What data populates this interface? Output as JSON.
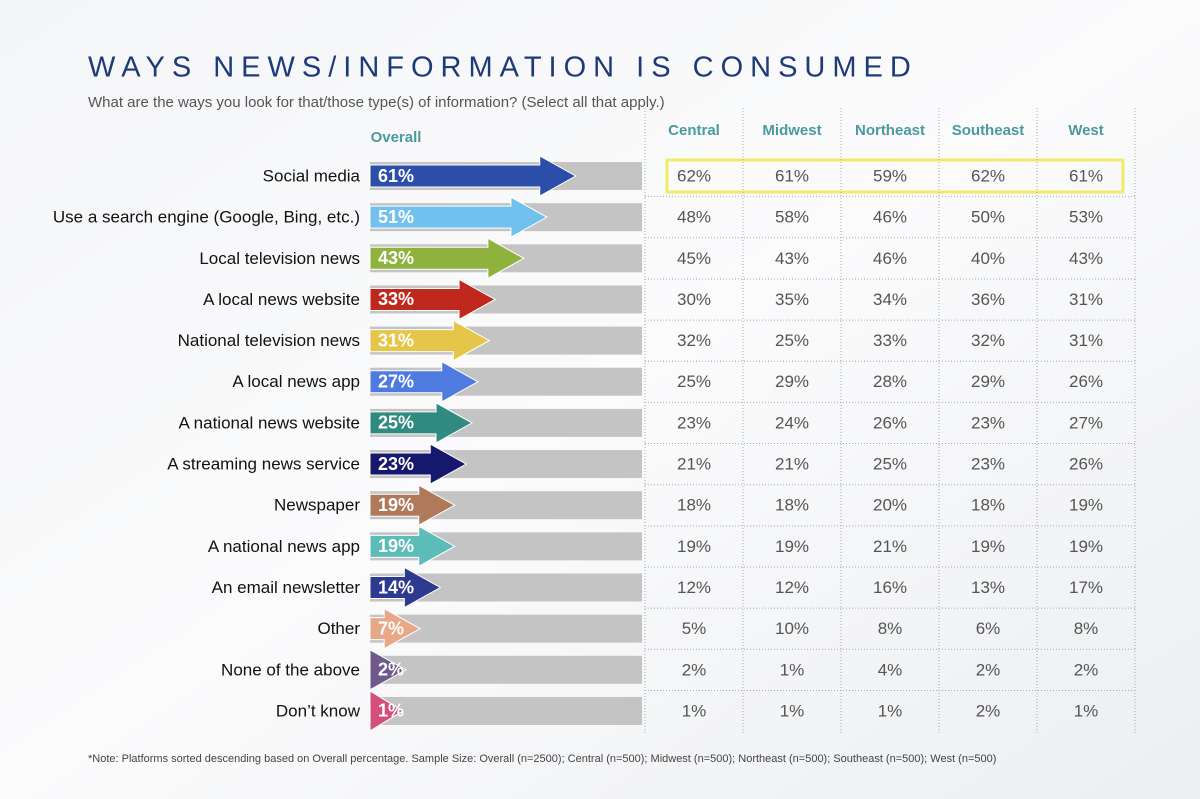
{
  "chart_data": {
    "type": "bar",
    "orientation": "horizontal",
    "title": "WAYS NEWS/INFORMATION IS CONSUMED",
    "subtitle": "What are the ways you look for that/those type(s) of information? (Select all that apply.)",
    "series_label": "Overall",
    "categories": [
      "Social media",
      "Use a search engine (Google, Bing, etc.)",
      "Local television news",
      "A local news website",
      "National television news",
      "A local news app",
      "A national news website",
      "A streaming news service",
      "Newspaper",
      "A national news app",
      "An email newsletter",
      "Other",
      "None of the above",
      "Don’t know"
    ],
    "values": [
      61,
      51,
      43,
      33,
      31,
      27,
      25,
      23,
      19,
      19,
      14,
      7,
      2,
      1
    ],
    "value_labels": [
      "61%",
      "51%",
      "43%",
      "33%",
      "31%",
      "27%",
      "25%",
      "23%",
      "19%",
      "19%",
      "14%",
      "7%",
      "2%",
      "1%"
    ],
    "colors": [
      "#2b4fa8",
      "#72c0ee",
      "#8fb13e",
      "#c0281e",
      "#e6c64a",
      "#4f7be0",
      "#2f8a80",
      "#16186e",
      "#b07a5a",
      "#5bbcb8",
      "#2e3a8f",
      "#e8a888",
      "#6e5a8a",
      "#d4507a"
    ],
    "xlim": [
      0,
      84
    ]
  },
  "table": {
    "columns": [
      "Central",
      "Midwest",
      "Northeast",
      "Southeast",
      "West"
    ],
    "rows": [
      [
        "62%",
        "61%",
        "59%",
        "62%",
        "61%"
      ],
      [
        "48%",
        "58%",
        "46%",
        "50%",
        "53%"
      ],
      [
        "45%",
        "43%",
        "46%",
        "40%",
        "43%"
      ],
      [
        "30%",
        "35%",
        "34%",
        "36%",
        "31%"
      ],
      [
        "32%",
        "25%",
        "33%",
        "32%",
        "31%"
      ],
      [
        "25%",
        "29%",
        "28%",
        "29%",
        "26%"
      ],
      [
        "23%",
        "24%",
        "26%",
        "23%",
        "27%"
      ],
      [
        "21%",
        "21%",
        "25%",
        "23%",
        "26%"
      ],
      [
        "18%",
        "18%",
        "20%",
        "18%",
        "19%"
      ],
      [
        "19%",
        "19%",
        "21%",
        "19%",
        "19%"
      ],
      [
        "12%",
        "12%",
        "16%",
        "13%",
        "17%"
      ],
      [
        "5%",
        "10%",
        "8%",
        "6%",
        "8%"
      ],
      [
        "2%",
        "1%",
        "4%",
        "2%",
        "2%"
      ],
      [
        "1%",
        "1%",
        "1%",
        "2%",
        "1%"
      ]
    ]
  },
  "note": "*Note: Platforms sorted descending based on Overall percentage.  Sample Size: Overall (n=2500); Central (n=500); Midwest (n=500); Northeast (n=500); Southeast (n=500); West (n=500)"
}
